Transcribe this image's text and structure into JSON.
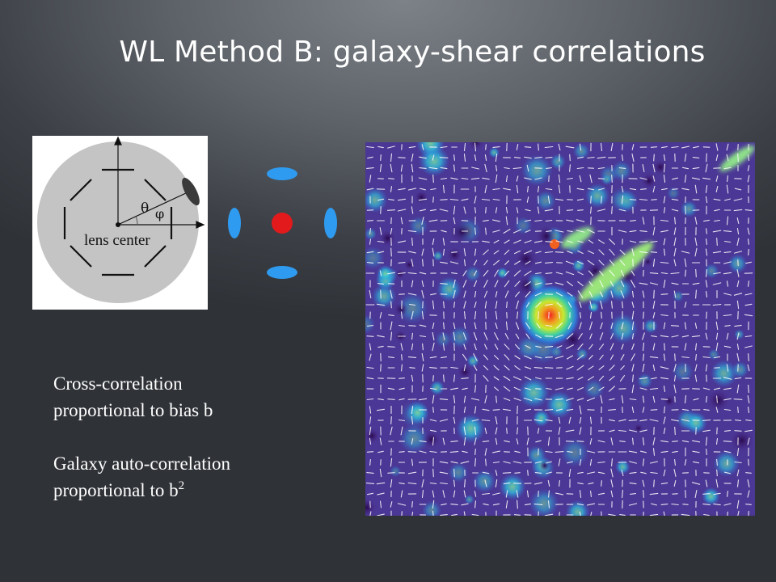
{
  "slide": {
    "title": "WL Method B: galaxy-shear correlations"
  },
  "lens_diagram": {
    "label_theta": "θ",
    "label_phi": "φ",
    "label_center": "lens center"
  },
  "text": {
    "p1_line1": "Cross-correlation",
    "p1_line2": "proportional to bias b",
    "p2_line1": "Galaxy auto-correlation",
    "p2_line2": "proportional to b",
    "p2_exponent": "2"
  },
  "colors": {
    "lens_disk": "#c4c4c4",
    "lens_point": "#e31a1c",
    "background_galaxy": "#2f9bf0",
    "map_low": "#4b2a8c",
    "map_high": "#f02020"
  }
}
